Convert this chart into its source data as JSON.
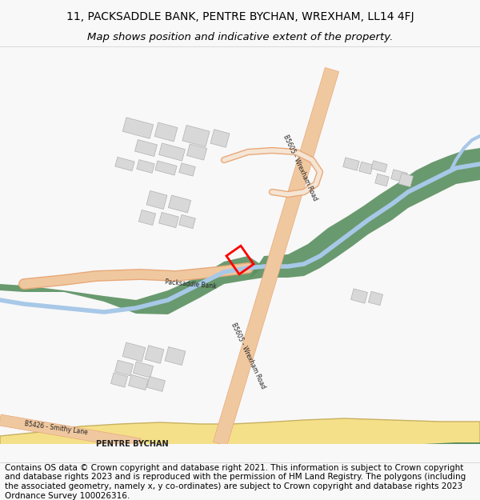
{
  "title_line1": "11, PACKSADDLE BANK, PENTRE BYCHAN, WREXHAM, LL14 4FJ",
  "title_line2": "Map shows position and indicative extent of the property.",
  "footer_text": "Contains OS data © Crown copyright and database right 2021. This information is subject to Crown copyright and database rights 2023 and is reproduced with the permission of HM Land Registry. The polygons (including the associated geometry, namely x, y co-ordinates) are subject to Crown copyright and database rights 2023 Ordnance Survey 100026316.",
  "bg_color": "#f8f8f8",
  "map_bg": "#ffffff",
  "road_color": "#f0c8a0",
  "road_border": "#e8a878",
  "river_color": "#a8c8e8",
  "river_bank_color": "#5a9060",
  "building_color": "#d8d8d8",
  "building_edge": "#b0b0b0",
  "highlight_color": "#ff0000",
  "yellow_area": "#f5e08a",
  "title_fontsize": 10,
  "footer_fontsize": 7.5
}
